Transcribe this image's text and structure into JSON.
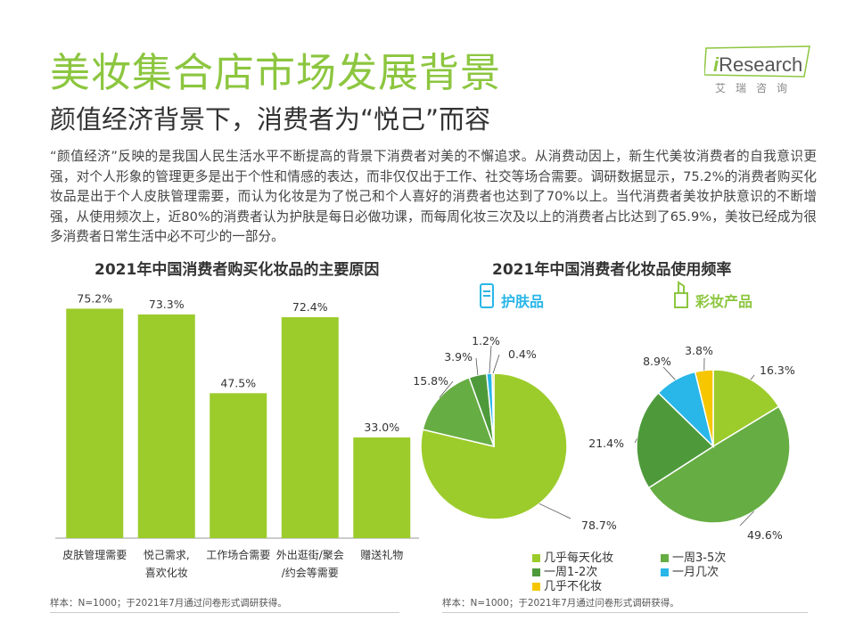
{
  "header": {
    "title": "美妆集合店市场发展背景",
    "subtitle": "颜值经济背景下，消费者为“悦己”而容",
    "logo_main": "Research",
    "logo_i": "i",
    "logo_sub": "艾瑞咨询"
  },
  "body": {
    "paragraph": "“颜值经济”反映的是我国人民生活水平不断提高的背景下消费者对美的不懈追求。从消费动因上，新生代美妆消费者的自我意识更强，对个人形象的管理更多是出于个性和情感的表达，而非仅仅出于工作、社交等场合需要。调研数据显示，75.2%的消费者购买化妆品是出于个人皮肤管理需要，而认为化妆是为了悦己和个人喜好的消费者也达到了70%以上。当代消费者美妆护肤意识的不断增强，从使用频次上，近80%的消费者认为护肤是每日必做功课，而每周化妆三次及以上的消费者占比达到了65.9%，美妆已经成为很多消费者日常生活中必不可少的一部分。"
  },
  "colors": {
    "green_light": "#9ccc2b",
    "green_mid": "#66ad43",
    "green_dark": "#4e9a3b",
    "blue": "#29b6e8",
    "yellow": "#f6c600",
    "title_green": "#8cc63f"
  },
  "icons": {
    "skin": "skincare-bottle-icon",
    "color": "lipstick-icon"
  },
  "chart_data": [
    {
      "type": "bar",
      "title": "2021年中国消费者购买化妆品的主要原因",
      "categories": [
        [
          "皮肤管理需要"
        ],
        [
          "悦己需求,",
          "喜欢化妆"
        ],
        [
          "工作场合需要"
        ],
        [
          "外出逛街/聚会",
          "/约会等需要"
        ],
        [
          "赠送礼物"
        ]
      ],
      "values": [
        75.2,
        73.3,
        47.5,
        72.4,
        33.0
      ],
      "value_labels": [
        "75.2%",
        "73.3%",
        "47.5%",
        "72.4%",
        "33.0%"
      ],
      "ylim": [
        0,
        80
      ],
      "note": "样本：N=1000；于2021年7月通过问卷形式调研获得。"
    },
    {
      "type": "pie",
      "title": "2021年中国消费者化妆品使用频率",
      "series": [
        {
          "name": "护肤品",
          "slices": [
            {
              "label": "几乎每天化妆",
              "value": 78.7,
              "text": "78.7%"
            },
            {
              "label": "一周3-5次",
              "value": 15.8,
              "text": "15.8%"
            },
            {
              "label": "一周1-2次",
              "value": 3.9,
              "text": "3.9%"
            },
            {
              "label": "一月几次",
              "value": 1.2,
              "text": "1.2%"
            },
            {
              "label": "几乎不化妆",
              "value": 0.4,
              "text": "0.4%"
            }
          ]
        },
        {
          "name": "彩妆产品",
          "slices": [
            {
              "label": "几乎每天化妆",
              "value": 16.3,
              "text": "16.3%"
            },
            {
              "label": "一周3-5次",
              "value": 49.6,
              "text": "49.6%"
            },
            {
              "label": "一周1-2次",
              "value": 21.4,
              "text": "21.4%"
            },
            {
              "label": "一月几次",
              "value": 8.9,
              "text": "8.9%"
            },
            {
              "label": "几乎不化妆",
              "value": 3.8,
              "text": "3.8%"
            }
          ]
        }
      ],
      "legend": [
        "几乎每天化妆",
        "一周3-5次",
        "一周1-2次",
        "一月几次",
        "几乎不化妆"
      ],
      "note": "样本：N=1000；于2021年7月通过问卷形式调研获得。"
    }
  ]
}
